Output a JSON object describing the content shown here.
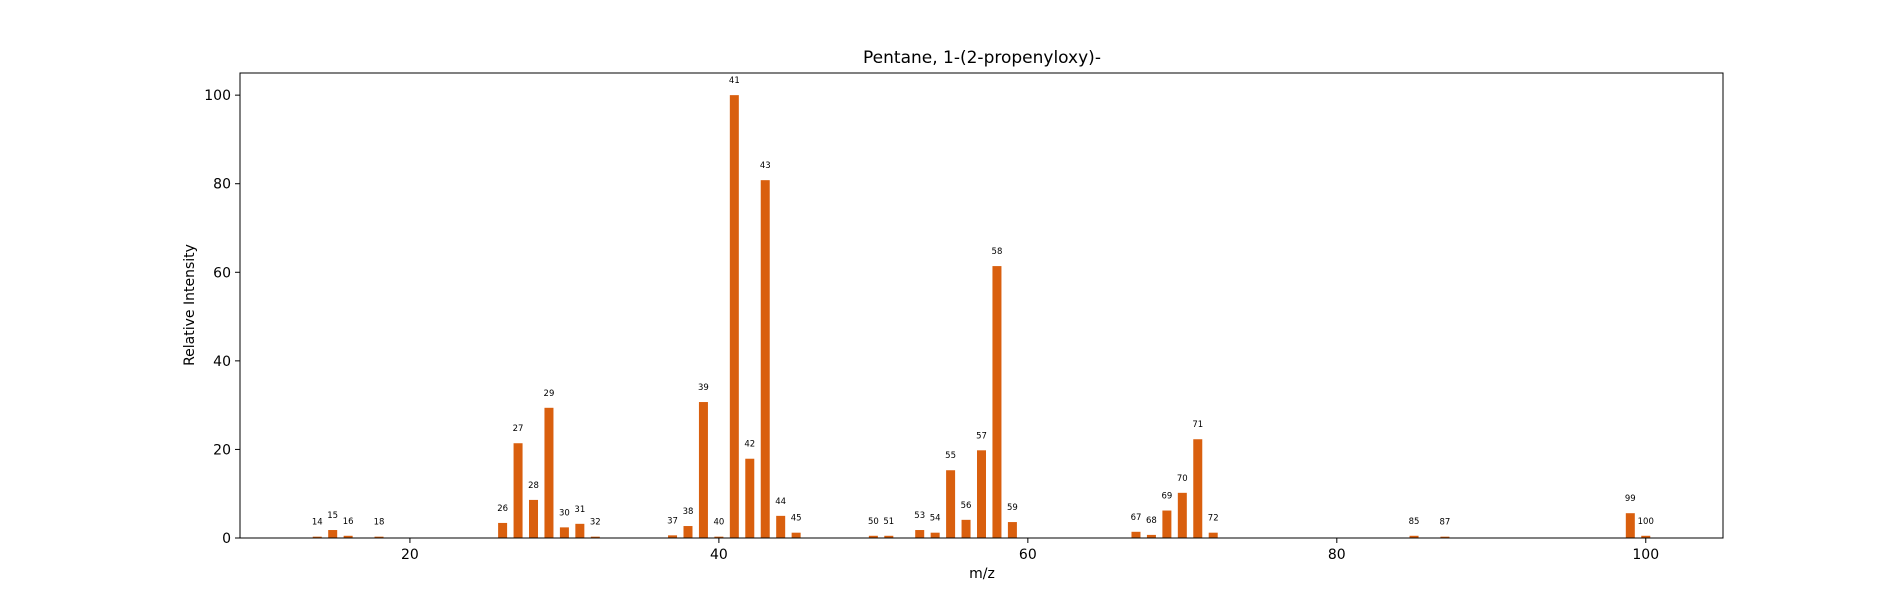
{
  "chart_data": {
    "type": "bar",
    "title": "Pentane, 1-(2-propenyloxy)-",
    "xlabel": "m/z",
    "ylabel": "Relative Intensity",
    "xlim": [
      9,
      105
    ],
    "ylim": [
      0,
      105
    ],
    "xticks": [
      20,
      40,
      60,
      80,
      100
    ],
    "yticks": [
      0,
      20,
      40,
      60,
      80,
      100
    ],
    "grid": false,
    "bar_color": "#d95f0e",
    "points": [
      {
        "x": 14,
        "y": 0.3,
        "label": "14"
      },
      {
        "x": 15,
        "y": 1.8,
        "label": "15"
      },
      {
        "x": 16,
        "y": 0.5,
        "label": "16"
      },
      {
        "x": 18,
        "y": 0.3,
        "label": "18"
      },
      {
        "x": 26,
        "y": 3.4,
        "label": "26"
      },
      {
        "x": 27,
        "y": 21.4,
        "label": "27"
      },
      {
        "x": 28,
        "y": 8.6,
        "label": "28"
      },
      {
        "x": 29,
        "y": 29.4,
        "label": "29"
      },
      {
        "x": 30,
        "y": 2.4,
        "label": "30"
      },
      {
        "x": 31,
        "y": 3.2,
        "label": "31"
      },
      {
        "x": 32,
        "y": 0.3,
        "label": "32"
      },
      {
        "x": 37,
        "y": 0.6,
        "label": "37"
      },
      {
        "x": 38,
        "y": 2.7,
        "label": "38"
      },
      {
        "x": 39,
        "y": 30.7,
        "label": "39"
      },
      {
        "x": 40,
        "y": 0.3,
        "label": "40"
      },
      {
        "x": 41,
        "y": 100,
        "label": "41"
      },
      {
        "x": 42,
        "y": 17.9,
        "label": "42"
      },
      {
        "x": 43,
        "y": 80.8,
        "label": "43"
      },
      {
        "x": 44,
        "y": 5.0,
        "label": "44"
      },
      {
        "x": 45,
        "y": 1.2,
        "label": "45"
      },
      {
        "x": 50,
        "y": 0.5,
        "label": "50"
      },
      {
        "x": 51,
        "y": 0.5,
        "label": "51"
      },
      {
        "x": 53,
        "y": 1.8,
        "label": "53"
      },
      {
        "x": 54,
        "y": 1.2,
        "label": "54"
      },
      {
        "x": 55,
        "y": 15.3,
        "label": "55"
      },
      {
        "x": 56,
        "y": 4.1,
        "label": "56"
      },
      {
        "x": 57,
        "y": 19.8,
        "label": "57"
      },
      {
        "x": 58,
        "y": 61.4,
        "label": "58"
      },
      {
        "x": 59,
        "y": 3.6,
        "label": "59"
      },
      {
        "x": 67,
        "y": 1.4,
        "label": "67"
      },
      {
        "x": 68,
        "y": 0.7,
        "label": "68"
      },
      {
        "x": 69,
        "y": 6.2,
        "label": "69"
      },
      {
        "x": 70,
        "y": 10.2,
        "label": "70"
      },
      {
        "x": 71,
        "y": 22.3,
        "label": "71"
      },
      {
        "x": 72,
        "y": 1.2,
        "label": "72"
      },
      {
        "x": 85,
        "y": 0.5,
        "label": "85"
      },
      {
        "x": 87,
        "y": 0.3,
        "label": "87"
      },
      {
        "x": 99,
        "y": 5.6,
        "label": "99"
      },
      {
        "x": 100,
        "y": 0.5,
        "label": "100"
      }
    ]
  }
}
